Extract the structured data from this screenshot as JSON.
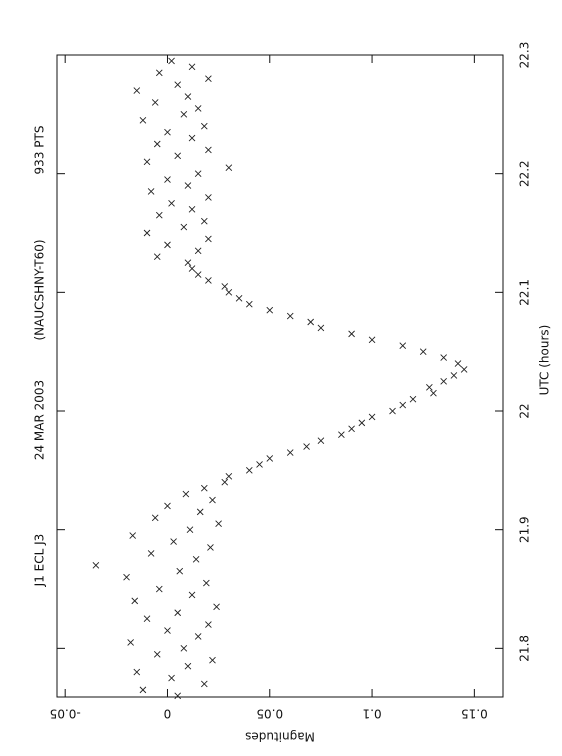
{
  "chart_data": {
    "type": "scatter",
    "title": "J1  ECL  J3",
    "date": "24  MAR  2003",
    "observatory": "(NAUCSHNY-T60)",
    "points_label": "933  PTS",
    "x_label": "UTC (hours)",
    "y_label": "Magnitudes",
    "xlim": [
      21.759,
      22.3
    ],
    "ylim": [
      -0.054,
      0.164
    ],
    "xticks": [
      21.8,
      21.9,
      22,
      22.1,
      22.2,
      22.3
    ],
    "yticks": [
      -0.05,
      0,
      0.05,
      0.1,
      0.15
    ],
    "color": "#222222",
    "x": [
      21.76,
      21.765,
      21.77,
      21.775,
      21.78,
      21.785,
      21.79,
      21.795,
      21.8,
      21.805,
      21.81,
      21.815,
      21.82,
      21.825,
      21.83,
      21.835,
      21.84,
      21.845,
      21.85,
      21.855,
      21.86,
      21.865,
      21.87,
      21.875,
      21.88,
      21.885,
      21.89,
      21.895,
      21.9,
      21.905,
      21.91,
      21.915,
      21.92,
      21.925,
      21.93,
      21.935,
      21.94,
      21.945,
      21.95,
      21.955,
      21.96,
      21.965,
      21.97,
      21.975,
      21.98,
      21.985,
      21.99,
      21.995,
      22.0,
      22.005,
      22.01,
      22.015,
      22.02,
      22.025,
      22.03,
      22.035,
      22.04,
      22.045,
      22.05,
      22.055,
      22.06,
      22.065,
      22.07,
      22.075,
      22.08,
      22.085,
      22.09,
      22.095,
      22.1,
      22.105,
      22.11,
      22.115,
      22.12,
      22.125,
      22.13,
      22.135,
      22.14,
      22.145,
      22.15,
      22.155,
      22.16,
      22.165,
      22.17,
      22.175,
      22.18,
      22.185,
      22.19,
      22.195,
      22.2,
      22.205,
      22.21,
      22.215,
      22.22,
      22.225,
      22.23,
      22.235,
      22.24,
      22.245,
      22.25,
      22.255,
      22.26,
      22.265,
      22.27,
      22.275,
      22.28,
      22.285,
      22.29,
      22.295
    ],
    "values": [
      0.005,
      -0.012,
      0.018,
      0.002,
      -0.015,
      0.01,
      0.022,
      -0.005,
      0.008,
      -0.018,
      0.015,
      0.0,
      0.02,
      -0.01,
      0.005,
      0.024,
      -0.016,
      0.012,
      -0.004,
      0.019,
      -0.02,
      0.006,
      -0.035,
      0.014,
      -0.008,
      0.021,
      0.003,
      -0.017,
      0.011,
      0.025,
      -0.006,
      0.016,
      0.0,
      0.022,
      0.009,
      0.018,
      0.028,
      0.03,
      0.04,
      0.045,
      0.05,
      0.06,
      0.068,
      0.075,
      0.085,
      0.09,
      0.095,
      0.1,
      0.11,
      0.115,
      0.12,
      0.13,
      0.128,
      0.135,
      0.14,
      0.145,
      0.142,
      0.135,
      0.125,
      0.115,
      0.1,
      0.09,
      0.075,
      0.07,
      0.06,
      0.05,
      0.04,
      0.035,
      0.03,
      0.028,
      0.02,
      0.015,
      0.012,
      0.01,
      -0.005,
      0.015,
      0.0,
      0.02,
      -0.01,
      0.008,
      0.018,
      -0.004,
      0.012,
      0.002,
      0.02,
      -0.008,
      0.01,
      0.0,
      0.015,
      0.03,
      -0.01,
      0.005,
      0.02,
      -0.005,
      0.012,
      0.0,
      0.018,
      -0.012,
      0.008,
      0.015,
      -0.006,
      0.01,
      -0.015,
      0.005,
      0.02,
      -0.004,
      0.012,
      0.002
    ]
  }
}
